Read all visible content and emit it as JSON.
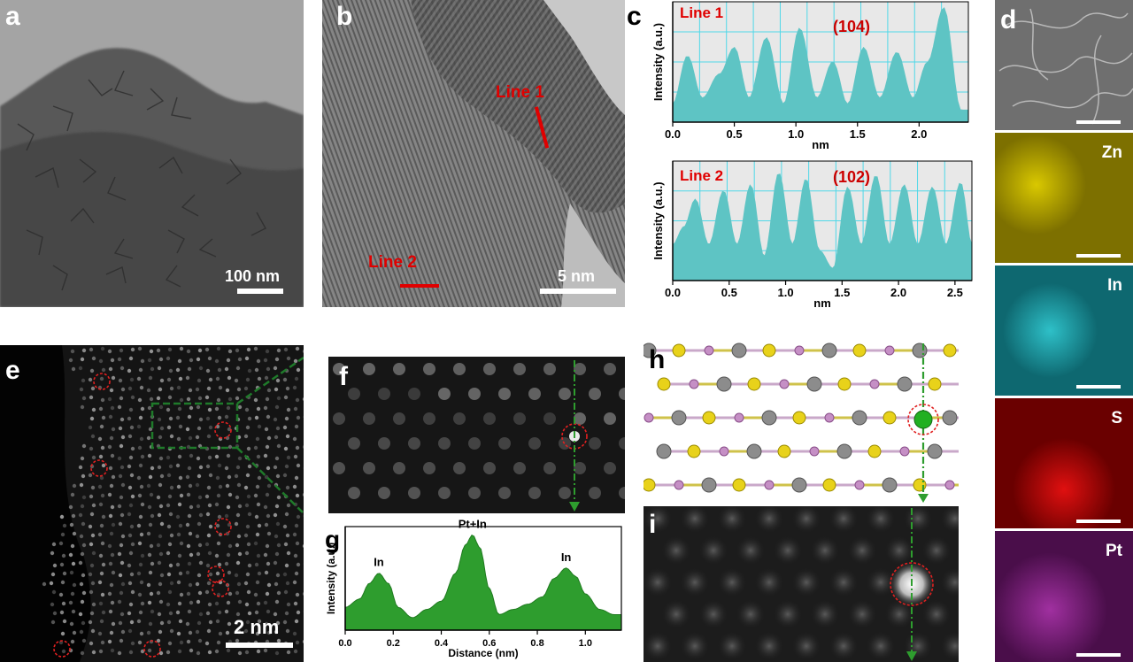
{
  "panels": {
    "a": {
      "label": "a",
      "scale": "100 nm"
    },
    "b": {
      "label": "b",
      "scale": "5 nm",
      "line1": "Line 1",
      "line2": "Line 2"
    },
    "c": {
      "label": "c"
    },
    "d": {
      "label": "d",
      "maps": [
        "Zn",
        "In",
        "S",
        "Pt"
      ],
      "colors": [
        "#c8b400",
        "#1ea7b0",
        "#cc0000",
        "#8e1f8e"
      ]
    },
    "e": {
      "label": "e",
      "scale": "2 nm"
    },
    "f": {
      "label": "f"
    },
    "g": {
      "label": "g"
    },
    "h": {
      "label": "h"
    },
    "i": {
      "label": "i"
    }
  },
  "chart_data": [
    {
      "id": "c-line1",
      "type": "area",
      "legend_text": "Line 1",
      "annotation": "(104)",
      "xlabel": "nm",
      "ylabel": "Intensity (a.u.)",
      "xlim": [
        0,
        2.4
      ],
      "xticks": [
        "0.0",
        "0.5",
        "1.0",
        "1.5",
        "2.0"
      ],
      "grid": true,
      "color": "#5ec4c4",
      "x": [
        0.0,
        0.12,
        0.24,
        0.38,
        0.5,
        0.62,
        0.76,
        0.9,
        1.03,
        1.17,
        1.3,
        1.42,
        1.55,
        1.68,
        1.82,
        1.95,
        2.07,
        2.2,
        2.34
      ],
      "values": [
        0.15,
        0.55,
        0.2,
        0.4,
        0.62,
        0.2,
        0.7,
        0.15,
        0.78,
        0.2,
        0.5,
        0.15,
        0.62,
        0.2,
        0.58,
        0.2,
        0.5,
        0.95,
        0.1
      ]
    },
    {
      "id": "c-line2",
      "type": "area",
      "legend_text": "Line 2",
      "annotation": "(102)",
      "xlabel": "nm",
      "ylabel": "Intensity (a.u.)",
      "xlim": [
        0,
        2.65
      ],
      "xticks": [
        "0.0",
        "0.5",
        "1.0",
        "1.5",
        "2.0",
        "2.5"
      ],
      "grid": true,
      "color": "#5ec4c4",
      "x": [
        0.0,
        0.1,
        0.2,
        0.32,
        0.45,
        0.57,
        0.69,
        0.81,
        0.94,
        1.06,
        1.18,
        1.3,
        1.42,
        1.55,
        1.67,
        1.8,
        1.92,
        2.05,
        2.17,
        2.3,
        2.42,
        2.55,
        2.65
      ],
      "values": [
        0.3,
        0.45,
        0.68,
        0.3,
        0.75,
        0.3,
        0.8,
        0.2,
        0.9,
        0.3,
        0.85,
        0.25,
        0.1,
        0.78,
        0.3,
        0.88,
        0.3,
        0.8,
        0.3,
        0.78,
        0.3,
        0.82,
        0.3
      ]
    },
    {
      "id": "g-profile",
      "type": "area",
      "xlabel": "Distance (nm)",
      "ylabel": "Intensity (a.u.)",
      "xlim": [
        0,
        1.15
      ],
      "xticks": [
        "0.0",
        "0.2",
        "0.4",
        "0.6",
        "0.8",
        "1.0"
      ],
      "grid": false,
      "color": "#2e9d2e",
      "x": [
        0.0,
        0.06,
        0.1,
        0.14,
        0.18,
        0.22,
        0.28,
        0.34,
        0.4,
        0.46,
        0.5,
        0.53,
        0.56,
        0.6,
        0.64,
        0.7,
        0.76,
        0.82,
        0.87,
        0.92,
        0.96,
        1.0,
        1.06,
        1.12
      ],
      "values": [
        0.22,
        0.3,
        0.45,
        0.55,
        0.45,
        0.22,
        0.12,
        0.2,
        0.28,
        0.55,
        0.82,
        0.92,
        0.8,
        0.4,
        0.15,
        0.2,
        0.25,
        0.32,
        0.5,
        0.6,
        0.52,
        0.35,
        0.2,
        0.15
      ],
      "annotations": [
        {
          "text": "In",
          "x": 0.14
        },
        {
          "text": "Pt+In",
          "x": 0.53
        },
        {
          "text": "In",
          "x": 0.92
        }
      ]
    }
  ]
}
